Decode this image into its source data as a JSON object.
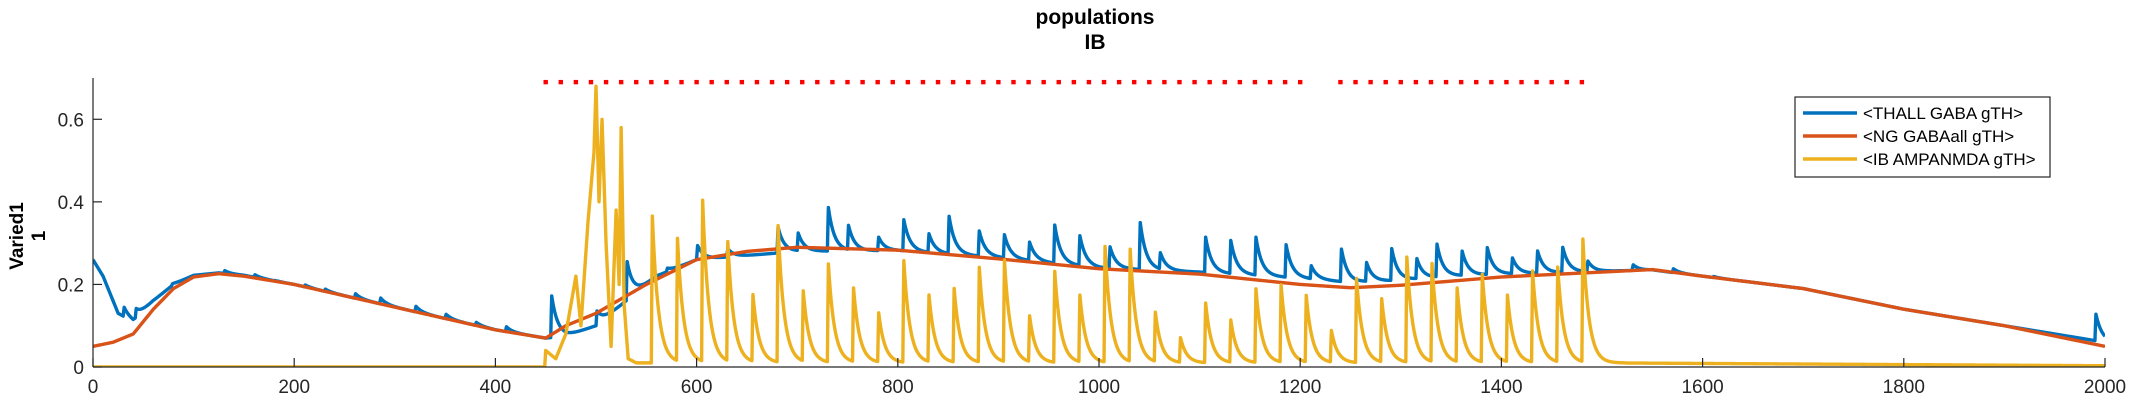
{
  "chart_data": {
    "type": "line",
    "title": [
      "populations",
      "IB"
    ],
    "ylabel": [
      "Varied1",
      "1"
    ],
    "xlabel": "",
    "xlim": [
      0,
      2000
    ],
    "ylim": [
      0,
      0.7
    ],
    "xticks": [
      0,
      200,
      400,
      600,
      800,
      1000,
      1200,
      1400,
      1600,
      1800,
      2000
    ],
    "yticks": [
      0,
      0.2,
      0.4,
      0.6
    ],
    "ytick_labels": [
      "0",
      "0.2",
      "0.4",
      "0.6"
    ],
    "grid": false,
    "legend_position": "top-right",
    "series": [
      {
        "name": "<THALL GABA gTH>",
        "color": "#0072BD",
        "base": [
          [
            0,
            0.26
          ],
          [
            10,
            0.22
          ],
          [
            25,
            0.13
          ],
          [
            40,
            0.11
          ],
          [
            60,
            0.16
          ],
          [
            80,
            0.2
          ],
          [
            100,
            0.222
          ],
          [
            125,
            0.228
          ],
          [
            150,
            0.222
          ],
          [
            200,
            0.2
          ],
          [
            300,
            0.145
          ],
          [
            400,
            0.09
          ],
          [
            450,
            0.07
          ],
          [
            470,
            0.075
          ],
          [
            500,
            0.1
          ],
          [
            530,
            0.16
          ],
          [
            560,
            0.22
          ],
          [
            600,
            0.26
          ],
          [
            650,
            0.27
          ],
          [
            700,
            0.28
          ],
          [
            800,
            0.282
          ],
          [
            900,
            0.265
          ],
          [
            1000,
            0.24
          ],
          [
            1100,
            0.23
          ],
          [
            1200,
            0.215
          ],
          [
            1250,
            0.205
          ],
          [
            1300,
            0.21
          ],
          [
            1350,
            0.22
          ],
          [
            1400,
            0.225
          ],
          [
            1450,
            0.228
          ],
          [
            1500,
            0.232
          ],
          [
            1550,
            0.235
          ],
          [
            1600,
            0.22
          ],
          [
            1700,
            0.19
          ],
          [
            1800,
            0.14
          ],
          [
            1900,
            0.1
          ],
          [
            2000,
            0.06
          ]
        ],
        "spikes": [
          [
            30,
            0.15
          ],
          [
            42,
            0.14
          ],
          [
            55,
            0.13
          ],
          [
            78,
            0.2
          ],
          [
            95,
            0.21
          ],
          [
            130,
            0.235
          ],
          [
            160,
            0.225
          ],
          [
            180,
            0.21
          ],
          [
            210,
            0.2
          ],
          [
            230,
            0.19
          ],
          [
            260,
            0.18
          ],
          [
            285,
            0.17
          ],
          [
            320,
            0.15
          ],
          [
            350,
            0.13
          ],
          [
            380,
            0.11
          ],
          [
            410,
            0.1
          ],
          [
            455,
            0.19
          ],
          [
            500,
            0.14
          ],
          [
            530,
            0.27
          ],
          [
            570,
            0.24
          ],
          [
            600,
            0.3
          ],
          [
            630,
            0.29
          ],
          [
            680,
            0.35
          ],
          [
            700,
            0.33
          ],
          [
            730,
            0.405
          ],
          [
            750,
            0.35
          ],
          [
            780,
            0.32
          ],
          [
            805,
            0.37
          ],
          [
            830,
            0.33
          ],
          [
            850,
            0.38
          ],
          [
            880,
            0.34
          ],
          [
            905,
            0.33
          ],
          [
            930,
            0.31
          ],
          [
            955,
            0.36
          ],
          [
            980,
            0.33
          ],
          [
            1010,
            0.3
          ],
          [
            1040,
            0.37
          ],
          [
            1060,
            0.28
          ],
          [
            1105,
            0.33
          ],
          [
            1130,
            0.32
          ],
          [
            1155,
            0.33
          ],
          [
            1185,
            0.31
          ],
          [
            1210,
            0.25
          ],
          [
            1240,
            0.3
          ],
          [
            1265,
            0.26
          ],
          [
            1290,
            0.3
          ],
          [
            1315,
            0.27
          ],
          [
            1335,
            0.31
          ],
          [
            1360,
            0.29
          ],
          [
            1385,
            0.3
          ],
          [
            1410,
            0.27
          ],
          [
            1435,
            0.29
          ],
          [
            1460,
            0.3
          ],
          [
            1485,
            0.26
          ],
          [
            1530,
            0.25
          ],
          [
            1570,
            0.24
          ],
          [
            1610,
            0.22
          ],
          [
            1650,
            0.2
          ],
          [
            1690,
            0.19
          ],
          [
            1730,
            0.17
          ],
          [
            1770,
            0.15
          ],
          [
            1810,
            0.13
          ],
          [
            1850,
            0.12
          ],
          [
            1890,
            0.1
          ],
          [
            1915,
            0.09
          ],
          [
            1950,
            0.08
          ],
          [
            1990,
            0.14
          ]
        ]
      },
      {
        "name": "<NG GABAall gTH>",
        "color": "#D95319",
        "base": [
          [
            0,
            0.05
          ],
          [
            20,
            0.06
          ],
          [
            40,
            0.08
          ],
          [
            60,
            0.14
          ],
          [
            80,
            0.19
          ],
          [
            100,
            0.218
          ],
          [
            125,
            0.226
          ],
          [
            150,
            0.22
          ],
          [
            200,
            0.2
          ],
          [
            300,
            0.145
          ],
          [
            400,
            0.09
          ],
          [
            450,
            0.07
          ],
          [
            470,
            0.1
          ],
          [
            500,
            0.13
          ],
          [
            550,
            0.2
          ],
          [
            600,
            0.26
          ],
          [
            650,
            0.28
          ],
          [
            700,
            0.29
          ],
          [
            800,
            0.283
          ],
          [
            900,
            0.262
          ],
          [
            1000,
            0.238
          ],
          [
            1100,
            0.225
          ],
          [
            1200,
            0.2
          ],
          [
            1250,
            0.192
          ],
          [
            1300,
            0.198
          ],
          [
            1350,
            0.208
          ],
          [
            1400,
            0.218
          ],
          [
            1450,
            0.224
          ],
          [
            1500,
            0.23
          ],
          [
            1550,
            0.236
          ],
          [
            1600,
            0.22
          ],
          [
            1700,
            0.19
          ],
          [
            1800,
            0.14
          ],
          [
            1900,
            0.1
          ],
          [
            2000,
            0.05
          ]
        ]
      },
      {
        "name": "<IB AMPANMDA gTH>",
        "color": "#EDB120",
        "base": [
          [
            0,
            0
          ],
          [
            449,
            0
          ],
          [
            450,
            0.04
          ],
          [
            460,
            0.02
          ],
          [
            470,
            0.08
          ],
          [
            480,
            0.22
          ],
          [
            485,
            0.1
          ],
          [
            492,
            0.35
          ],
          [
            498,
            0.52
          ],
          [
            500,
            0.68
          ],
          [
            503,
            0.4
          ],
          [
            506,
            0.6
          ],
          [
            510,
            0.3
          ],
          [
            515,
            0.05
          ],
          [
            520,
            0.38
          ],
          [
            523,
            0.2
          ],
          [
            525,
            0.58
          ],
          [
            528,
            0.15
          ],
          [
            532,
            0.02
          ],
          [
            540,
            0.01
          ],
          [
            1480,
            0.01
          ],
          [
            1500,
            0.01
          ],
          [
            2000,
            0.003
          ]
        ],
        "spikes": [
          [
            555,
            0.43
          ],
          [
            580,
            0.36
          ],
          [
            605,
            0.47
          ],
          [
            630,
            0.35
          ],
          [
            655,
            0.2
          ],
          [
            680,
            0.4
          ],
          [
            705,
            0.21
          ],
          [
            730,
            0.29
          ],
          [
            755,
            0.22
          ],
          [
            780,
            0.15
          ],
          [
            805,
            0.3
          ],
          [
            830,
            0.2
          ],
          [
            855,
            0.22
          ],
          [
            880,
            0.28
          ],
          [
            905,
            0.3
          ],
          [
            930,
            0.14
          ],
          [
            955,
            0.27
          ],
          [
            980,
            0.2
          ],
          [
            1005,
            0.34
          ],
          [
            1030,
            0.33
          ],
          [
            1055,
            0.15
          ],
          [
            1080,
            0.08
          ],
          [
            1105,
            0.18
          ],
          [
            1130,
            0.13
          ],
          [
            1155,
            0.22
          ],
          [
            1180,
            0.23
          ],
          [
            1205,
            0.2
          ],
          [
            1230,
            0.1
          ],
          [
            1255,
            0.25
          ],
          [
            1280,
            0.19
          ],
          [
            1305,
            0.31
          ],
          [
            1330,
            0.29
          ],
          [
            1355,
            0.22
          ],
          [
            1380,
            0.26
          ],
          [
            1405,
            0.2
          ],
          [
            1430,
            0.27
          ],
          [
            1455,
            0.28
          ],
          [
            1480,
            0.36
          ]
        ]
      }
    ],
    "markers": {
      "color": "#FF0000",
      "y": 0.69,
      "x": [
        450,
        465,
        480,
        495,
        510,
        525,
        540,
        555,
        570,
        585,
        600,
        615,
        630,
        645,
        660,
        675,
        690,
        705,
        720,
        735,
        750,
        765,
        780,
        795,
        810,
        825,
        840,
        855,
        870,
        885,
        900,
        915,
        930,
        945,
        960,
        975,
        990,
        1005,
        1020,
        1035,
        1050,
        1065,
        1080,
        1095,
        1110,
        1125,
        1140,
        1155,
        1170,
        1185,
        1200,
        1240,
        1255,
        1270,
        1285,
        1300,
        1315,
        1330,
        1345,
        1360,
        1375,
        1390,
        1405,
        1420,
        1435,
        1450,
        1465,
        1480
      ]
    }
  }
}
